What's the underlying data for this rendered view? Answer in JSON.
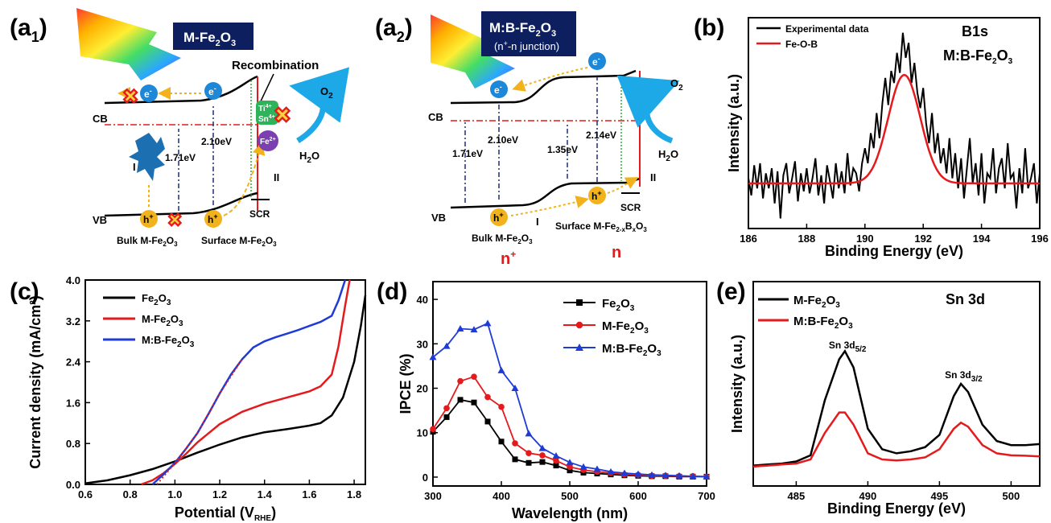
{
  "panels": {
    "a1": {
      "label": "(a",
      "sub": "1",
      "close": ")",
      "title_main": "M-Fe",
      "title_sub": "2",
      "title_end": "O",
      "title_sub2": "3",
      "recombination": "Recombination",
      "cb": "CB",
      "vb": "VB",
      "e": "e",
      "minus": "-",
      "h": "h",
      "plus": "+",
      "gap1": "1.71eV",
      "gap2": "2.10eV",
      "roman1": "I",
      "roman2": "II",
      "o2": "O",
      "o2sub": "2",
      "h2o": "H",
      "h2osub": "2",
      "h2oend": "O",
      "ti": "Ti",
      "ti_sup": "4+",
      "sn": "Sn",
      "sn_sup": "4+",
      "fe": "Fe",
      "fe_sup": "2+",
      "scr": "SCR",
      "bulk": "Bulk M-Fe",
      "bulk_sub": "2",
      "bulk_end": "O",
      "bulk_sub2": "3",
      "surface": "Surface M-Fe",
      "surface_sub": "2",
      "surface_end": "O",
      "surface_sub2": "3"
    },
    "a2": {
      "label": "(a",
      "sub": "2",
      "close": ")",
      "title_main": "M:B-Fe",
      "title_sub": "2",
      "title_end": "O",
      "title_sub2": "3",
      "title_line2": "(n",
      "title_line2_sup": "+",
      "title_line2_end": "-n junction)",
      "cb": "CB",
      "vb": "VB",
      "gap1": "1.71eV",
      "gap2": "2.10eV",
      "gap3": "1.35eV",
      "gap4": "2.14eV",
      "roman1": "I",
      "roman2": "II",
      "scr": "SCR",
      "bulk": "Bulk M-Fe",
      "bulk_sub": "2",
      "bulk_end": "O",
      "bulk_sub2": "3",
      "surface": "Surface M-Fe",
      "surface_sub": "2-x",
      "surface_mid": "B",
      "surface_sub2": "x",
      "surface_end": "O",
      "surface_sub3": "3",
      "nplus": "n",
      "nplus_sup": "+",
      "n": "n"
    },
    "b": {
      "label": "(b)"
    },
    "c": {
      "label": "(c)"
    },
    "d": {
      "label": "(d)"
    },
    "e": {
      "label": "(e)"
    }
  },
  "chart_data": [
    {
      "panel": "b",
      "type": "line",
      "title": "B1s",
      "annotation": "M:B-Fe",
      "annotation_sub": "2",
      "annotation_end": "O",
      "annotation_sub2": "3",
      "xlabel": "Binding Energy (eV)",
      "ylabel": "Intensity (a.u.)",
      "xlim": [
        186,
        196
      ],
      "xticks": [
        186,
        188,
        190,
        192,
        194,
        196
      ],
      "legend": "top-left",
      "series": [
        {
          "name": "Experimental data",
          "color": "#000000",
          "x": [
            186.0,
            186.1,
            186.2,
            186.3,
            186.4,
            186.5,
            186.6,
            186.7,
            186.8,
            186.9,
            187.0,
            187.1,
            187.2,
            187.3,
            187.4,
            187.5,
            187.6,
            187.7,
            187.8,
            187.9,
            188.0,
            188.1,
            188.2,
            188.3,
            188.4,
            188.5,
            188.6,
            188.7,
            188.8,
            188.9,
            189.0,
            189.1,
            189.2,
            189.3,
            189.4,
            189.5,
            189.6,
            189.7,
            189.8,
            189.9,
            190.0,
            190.1,
            190.2,
            190.3,
            190.4,
            190.5,
            190.6,
            190.7,
            190.8,
            190.9,
            191.0,
            191.1,
            191.2,
            191.3,
            191.4,
            191.5,
            191.6,
            191.7,
            191.8,
            191.9,
            192.0,
            192.1,
            192.2,
            192.3,
            192.4,
            192.5,
            192.6,
            192.7,
            192.8,
            192.9,
            193.0,
            193.1,
            193.2,
            193.3,
            193.4,
            193.5,
            193.6,
            193.7,
            193.8,
            193.9,
            194.0,
            194.1,
            194.2,
            194.3,
            194.4,
            194.5,
            194.6,
            194.7,
            194.8,
            194.9,
            195.0,
            195.1,
            195.2,
            195.3,
            195.4,
            195.5,
            195.6,
            195.7,
            195.8,
            195.9,
            196.0
          ],
          "y": [
            0.05,
            -0.12,
            0.18,
            -0.05,
            0.2,
            -0.15,
            0.1,
            -0.05,
            0.15,
            -0.2,
            0.12,
            -0.35,
            0.08,
            0.2,
            -0.1,
            0.05,
            0.22,
            -0.18,
            0.1,
            -0.08,
            0.15,
            -0.1,
            0.05,
            0.25,
            -0.12,
            0.08,
            -0.2,
            0.18,
            0.02,
            -0.15,
            0.2,
            -0.05,
            0.12,
            -0.1,
            0.3,
            -0.02,
            0.15,
            0.1,
            -0.08,
            0.2,
            0.35,
            0.2,
            0.5,
            0.35,
            0.7,
            0.45,
            0.8,
            1.05,
            0.78,
            1.12,
            1.0,
            1.3,
            1.1,
            1.5,
            1.25,
            1.4,
            1.0,
            1.2,
            0.9,
            0.75,
            0.95,
            0.6,
            0.4,
            0.7,
            0.3,
            0.5,
            0.2,
            0.35,
            0.1,
            0.45,
            0.05,
            0.3,
            -0.05,
            0.25,
            -0.15,
            0.15,
            0.45,
            0.0,
            0.2,
            -0.12,
            0.3,
            -0.2,
            0.1,
            0.05,
            0.35,
            -0.1,
            0.15,
            0.25,
            -0.05,
            0.4,
            0.05,
            0.1,
            -0.25,
            0.15,
            -0.1,
            0.35,
            -0.05,
            0.05,
            0.2,
            -0.2,
            0.1
          ]
        },
        {
          "name": "Fe-O-B",
          "color": "#e41a1c",
          "gaussian": {
            "center": 191.35,
            "height": 1.08,
            "sigma": 0.55
          },
          "baseline": 0.0
        }
      ]
    },
    {
      "panel": "c",
      "type": "line",
      "xlabel": "Potential (V",
      "xlabel_sub": "RHE",
      "xlabel_end": ")",
      "ylabel": "Current density (mA/cm",
      "ylabel_sup": "2",
      "ylabel_end": ")",
      "xlim": [
        0.6,
        1.85
      ],
      "ylim": [
        0.0,
        4.0
      ],
      "xticks": [
        0.6,
        0.8,
        1.0,
        1.2,
        1.4,
        1.6,
        1.8
      ],
      "yticks": [
        0.0,
        0.8,
        1.6,
        2.4,
        3.2,
        4.0
      ],
      "legend": "top-left",
      "series": [
        {
          "name": "Fe",
          "name_sub": "2",
          "name_end": "O",
          "name_sub2": "3",
          "color": "#000000",
          "x": [
            0.6,
            0.7,
            0.8,
            0.9,
            1.0,
            1.1,
            1.2,
            1.3,
            1.4,
            1.5,
            1.6,
            1.65,
            1.7,
            1.75,
            1.8,
            1.83,
            1.85
          ],
          "y": [
            0.02,
            0.08,
            0.18,
            0.3,
            0.45,
            0.62,
            0.78,
            0.92,
            1.02,
            1.08,
            1.15,
            1.2,
            1.35,
            1.7,
            2.4,
            3.1,
            3.7
          ]
        },
        {
          "name": "M-Fe",
          "name_sub": "2",
          "name_end": "O",
          "name_sub2": "3",
          "color": "#e41a1c",
          "x": [
            0.85,
            0.9,
            0.95,
            1.0,
            1.05,
            1.1,
            1.2,
            1.3,
            1.4,
            1.5,
            1.6,
            1.65,
            1.7,
            1.73,
            1.76,
            1.78
          ],
          "y": [
            0.0,
            0.08,
            0.22,
            0.4,
            0.6,
            0.82,
            1.18,
            1.42,
            1.58,
            1.7,
            1.82,
            1.92,
            2.15,
            2.7,
            3.5,
            4.0
          ]
        },
        {
          "name": "M:B-Fe",
          "name_sub": "2",
          "name_end": "O",
          "name_sub2": "3",
          "color": "#1f3bd6",
          "x": [
            0.9,
            0.95,
            1.0,
            1.05,
            1.1,
            1.15,
            1.2,
            1.25,
            1.3,
            1.35,
            1.4,
            1.45,
            1.5,
            1.55,
            1.6,
            1.65,
            1.7,
            1.73,
            1.76
          ],
          "y": [
            0.0,
            0.2,
            0.42,
            0.7,
            1.0,
            1.38,
            1.78,
            2.15,
            2.45,
            2.68,
            2.8,
            2.88,
            2.95,
            3.02,
            3.1,
            3.18,
            3.3,
            3.6,
            4.0
          ]
        }
      ]
    },
    {
      "panel": "d",
      "type": "line",
      "xlabel": "Wavelength (nm)",
      "ylabel": "IPCE (%)",
      "xlim": [
        300,
        700
      ],
      "ylim": [
        -2,
        44
      ],
      "xticks": [
        300,
        400,
        500,
        600,
        700
      ],
      "yticks": [
        0,
        10,
        20,
        30,
        40
      ],
      "legend": "top-right",
      "series": [
        {
          "name": "Fe",
          "name_sub": "2",
          "name_end": "O",
          "name_sub2": "3",
          "color": "#000000",
          "marker": "square",
          "x": [
            300,
            320,
            340,
            360,
            380,
            400,
            420,
            440,
            460,
            480,
            500,
            520,
            540,
            560,
            580,
            600,
            620,
            640,
            660,
            680,
            700
          ],
          "y": [
            10.2,
            13.5,
            17.4,
            16.8,
            12.5,
            8.0,
            4.0,
            3.2,
            3.4,
            2.6,
            1.5,
            1.0,
            0.8,
            0.6,
            0.4,
            0.3,
            0.2,
            0.2,
            0.1,
            0.1,
            0.1
          ]
        },
        {
          "name": "M-Fe",
          "name_sub": "2",
          "name_end": "O",
          "name_sub2": "3",
          "color": "#e41a1c",
          "marker": "circle",
          "x": [
            300,
            320,
            340,
            360,
            380,
            400,
            420,
            440,
            460,
            480,
            500,
            520,
            540,
            560,
            580,
            600,
            620,
            640,
            660,
            680,
            700
          ],
          "y": [
            10.8,
            15.5,
            21.6,
            22.6,
            18.0,
            15.8,
            7.6,
            5.4,
            4.9,
            3.7,
            2.3,
            1.6,
            1.2,
            0.9,
            0.6,
            0.5,
            0.3,
            0.3,
            0.2,
            0.2,
            0.1
          ]
        },
        {
          "name": "M:B-Fe",
          "name_sub": "2",
          "name_end": "O",
          "name_sub2": "3",
          "color": "#1f3bd6",
          "marker": "triangle",
          "x": [
            300,
            320,
            340,
            360,
            380,
            400,
            420,
            440,
            460,
            480,
            500,
            520,
            540,
            560,
            580,
            600,
            620,
            640,
            660,
            680,
            700
          ],
          "y": [
            27.0,
            29.5,
            33.4,
            33.2,
            34.6,
            24.0,
            20.0,
            9.8,
            6.5,
            4.8,
            3.3,
            2.3,
            1.8,
            1.2,
            0.9,
            0.7,
            0.5,
            0.4,
            0.3,
            0.2,
            0.1
          ]
        }
      ]
    },
    {
      "panel": "e",
      "type": "line",
      "title": "Sn 3d",
      "xlabel": "Binding Energy (eV)",
      "ylabel": "Intensity (a.u.)",
      "xlim": [
        482,
        502
      ],
      "ylim": [
        0,
        100
      ],
      "xticks": [
        485,
        490,
        495,
        500
      ],
      "legend": "top-left",
      "peak_labels": [
        {
          "text": "Sn 3d",
          "sub": "5/2",
          "x": 488.4
        },
        {
          "text": "Sn 3d",
          "sub": "3/2",
          "x": 496.5
        }
      ],
      "series": [
        {
          "name": "M-Fe",
          "name_sub": "2",
          "name_end": "O",
          "name_sub2": "3",
          "color": "#000000",
          "x": [
            482,
            483,
            484,
            485,
            486,
            487,
            488,
            488.4,
            489,
            490,
            491,
            492,
            493,
            494,
            495,
            496,
            496.5,
            497,
            498,
            499,
            500,
            501,
            502
          ],
          "y": [
            10,
            10.5,
            11,
            12,
            15,
            42,
            62,
            66,
            58,
            28,
            18,
            16,
            17,
            19,
            25,
            44,
            50,
            46,
            30,
            22,
            20,
            20,
            20.5
          ]
        },
        {
          "name": "M:B-Fe",
          "name_sub": "2",
          "name_end": "O",
          "name_sub2": "3",
          "color": "#e41a1c",
          "x": [
            482,
            483,
            484,
            485,
            486,
            487,
            488,
            488.4,
            489,
            490,
            491,
            492,
            493,
            494,
            495,
            496,
            496.5,
            497,
            498,
            499,
            500,
            501,
            502
          ],
          "y": [
            9.5,
            10,
            10.5,
            11,
            13,
            26,
            36,
            36,
            30,
            16,
            13,
            12.5,
            13,
            14,
            18,
            28,
            31,
            29,
            20,
            16,
            15,
            14.8,
            14.5
          ]
        }
      ]
    }
  ]
}
